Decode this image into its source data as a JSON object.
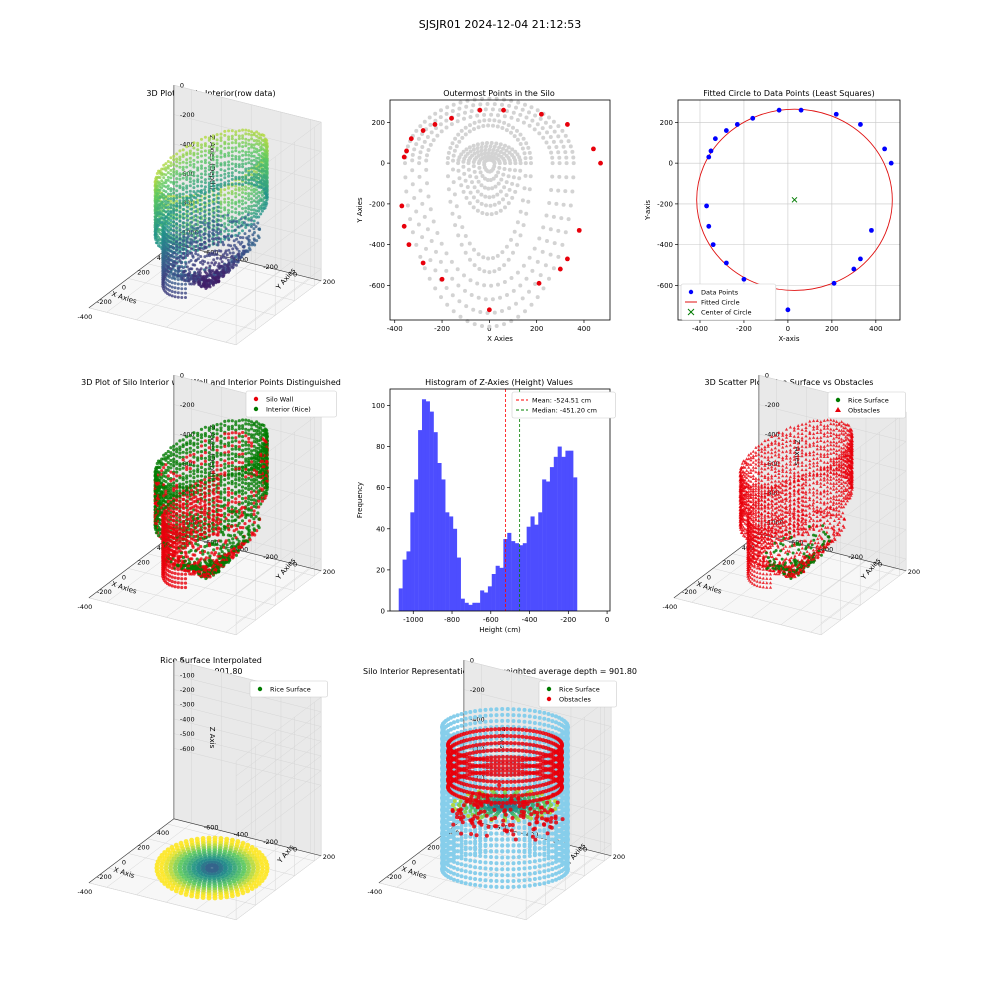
{
  "suptitle": "SJSJR01 2024-12-04 21:12:53",
  "colors": {
    "red": "#e8000b",
    "green": "#007a00",
    "blue": "#0000ff",
    "grey": "#d3d3d3",
    "hist": "#4d4dff",
    "skyblue": "#87ceeb",
    "circle": "#e01010"
  },
  "chart_data": [
    {
      "id": "p1",
      "type": "scatter3d",
      "title": "3D Plot of Silo Interior(row data)",
      "xlabel": "X Axies",
      "ylabel": "Y Axies",
      "zlabel": "Z Axies (Depth)",
      "xticks": [
        -400,
        -200,
        0,
        200,
        400
      ],
      "yticks": [
        200,
        0,
        -200,
        -400,
        -600
      ],
      "zticks": [
        0,
        -200,
        -400,
        -600,
        -800,
        -1000
      ],
      "xlim": [
        -400,
        470
      ],
      "ylim": [
        -720,
        270
      ],
      "zlim": [
        -1080,
        0
      ],
      "colormap": "viridis",
      "color_by": "z"
    },
    {
      "id": "p2",
      "type": "scatter",
      "title": "Outermost Points in the Silo",
      "xlabel": "X Axies",
      "ylabel": "Y Axies",
      "xlim": [
        -420,
        510
      ],
      "ylim": [
        -770,
        310
      ],
      "xticks": [
        -400,
        -200,
        0,
        200,
        400
      ],
      "yticks": [
        200,
        0,
        -200,
        -400,
        -600
      ],
      "series": [
        {
          "role": "all_points",
          "color": "#d3d3d3"
        },
        {
          "role": "outermost",
          "color": "#e8000b",
          "points": [
            [
              -350,
              60
            ],
            [
              -360,
              30
            ],
            [
              -330,
              120
            ],
            [
              -280,
              160
            ],
            [
              -230,
              190
            ],
            [
              -160,
              220
            ],
            [
              -40,
              260
            ],
            [
              60,
              260
            ],
            [
              220,
              240
            ],
            [
              330,
              190
            ],
            [
              440,
              70
            ],
            [
              470,
              0
            ],
            [
              -370,
              -210
            ],
            [
              -360,
              -310
            ],
            [
              -340,
              -400
            ],
            [
              -280,
              -490
            ],
            [
              -200,
              -570
            ],
            [
              0,
              -720
            ],
            [
              210,
              -590
            ],
            [
              300,
              -520
            ],
            [
              330,
              -470
            ],
            [
              380,
              -330
            ]
          ]
        }
      ]
    },
    {
      "id": "p3",
      "type": "scatter",
      "title": "Fitted Circle to Data Points (Least Squares)",
      "xlabel": "X-axis",
      "ylabel": "Y-axis",
      "xlim": [
        -500,
        510
      ],
      "ylim": [
        -770,
        310
      ],
      "xticks": [
        -400,
        -200,
        0,
        200,
        400
      ],
      "yticks": [
        200,
        0,
        -200,
        -400,
        -600
      ],
      "grid": true,
      "legend_position": "bottom-left",
      "legend": [
        "Data Points",
        "Fitted Circle",
        "Center of Circle"
      ],
      "points": [
        [
          -350,
          60
        ],
        [
          -360,
          30
        ],
        [
          -330,
          120
        ],
        [
          -280,
          160
        ],
        [
          -230,
          190
        ],
        [
          -160,
          220
        ],
        [
          -40,
          260
        ],
        [
          60,
          260
        ],
        [
          220,
          240
        ],
        [
          330,
          190
        ],
        [
          440,
          70
        ],
        [
          470,
          0
        ],
        [
          -370,
          -210
        ],
        [
          -360,
          -310
        ],
        [
          -340,
          -400
        ],
        [
          -280,
          -490
        ],
        [
          -200,
          -570
        ],
        [
          0,
          -720
        ],
        [
          210,
          -590
        ],
        [
          300,
          -520
        ],
        [
          330,
          -470
        ],
        [
          380,
          -330
        ]
      ],
      "circle": {
        "cx": 30,
        "cy": -180,
        "r": 445
      },
      "center": [
        30,
        -180
      ]
    },
    {
      "id": "p4",
      "type": "scatter3d",
      "title": "3D Plot of Silo Interior with Wall and Interior Points Distinguished",
      "xlabel": "X Axies",
      "ylabel": "Y Axies",
      "zlabel": "Z Axies (Depth)",
      "xticks": [
        -400,
        -200,
        0,
        200,
        400
      ],
      "yticks": [
        200,
        0,
        -200,
        -400,
        -600
      ],
      "zticks": [
        0,
        -200,
        -400,
        -600,
        -800,
        -1000
      ],
      "xlim": [
        -400,
        470
      ],
      "ylim": [
        -720,
        270
      ],
      "zlim": [
        -1080,
        0
      ],
      "legend": [
        "Silo Wall",
        "Interior (Rice)"
      ],
      "legend_position": "top-right"
    },
    {
      "id": "p5",
      "type": "bar",
      "title": "Histogram of Z-Axies (Height) Values",
      "xlabel": "Height (cm)",
      "ylabel": "Frequency",
      "xlim": [
        -1120,
        15
      ],
      "ylim": [
        0,
        108
      ],
      "xticks": [
        -1000,
        -800,
        -600,
        -400,
        -200,
        0
      ],
      "yticks": [
        0,
        20,
        40,
        60,
        80,
        100
      ],
      "bins_start": -1075,
      "bin_width": 20,
      "values": [
        11,
        25,
        29,
        48,
        64,
        88,
        103,
        102,
        97,
        87,
        72,
        64,
        48,
        46,
        40,
        26,
        6,
        4,
        3,
        4,
        4,
        10,
        9,
        12,
        18,
        22,
        21,
        35,
        38,
        34,
        33,
        32,
        33,
        41,
        46,
        42,
        48,
        64,
        63,
        70,
        75,
        80,
        75,
        78,
        78,
        65
      ],
      "mean": -524.51,
      "median": -451.2,
      "legend": [
        "Mean: -524.51 cm",
        "Median: -451.20 cm"
      ],
      "legend_position": "top-right"
    },
    {
      "id": "p6",
      "type": "scatter3d",
      "title": "3D Scatter Plot: Rice Surface vs Obstacles",
      "xlabel": "X Axies",
      "ylabel": "Y Axies",
      "zlabel": "Z Axies",
      "xticks": [
        -400,
        -200,
        0,
        200,
        400
      ],
      "yticks": [
        200,
        0,
        -200,
        -400,
        -600
      ],
      "zticks": [
        0,
        -200,
        -400,
        -600,
        -800,
        -1000
      ],
      "xlim": [
        -400,
        470
      ],
      "ylim": [
        -720,
        270
      ],
      "zlim": [
        -1080,
        0
      ],
      "legend": [
        "Rice Surface",
        "Obstacles"
      ],
      "legend_position": "top-right"
    },
    {
      "id": "p7",
      "type": "surface3d",
      "title": "Rice Surface Interpolated",
      "subtitle": "depth = 901.80",
      "xlabel": "X Axis",
      "ylabel": "Y Axis",
      "zlabel": "Z Axis",
      "xticks": [
        -400,
        -200,
        0,
        200,
        400
      ],
      "yticks": [
        200,
        0,
        -200,
        -400,
        -600
      ],
      "zticks": [
        0,
        -100,
        -200,
        -300,
        -400,
        -500,
        -600
      ],
      "legend": [
        "Rice Surface"
      ],
      "legend_position": "top-right",
      "colormap": "viridis",
      "depth": 901.8
    },
    {
      "id": "p8",
      "type": "scatter3d",
      "title": "Silo Interior Representation using weighted average depth = 901.80",
      "xlabel": "X Axies",
      "ylabel": "Y Axies",
      "zlabel": "Z Axis",
      "xticks": [
        -400,
        -200,
        0,
        200,
        400
      ],
      "yticks": [
        200,
        0,
        -200,
        -400,
        -600
      ],
      "zticks": [
        0,
        -200,
        -400,
        -600,
        -800,
        -1000
      ],
      "legend": [
        "Rice Surface",
        "Obstacles"
      ],
      "legend_position": "top-center"
    }
  ]
}
